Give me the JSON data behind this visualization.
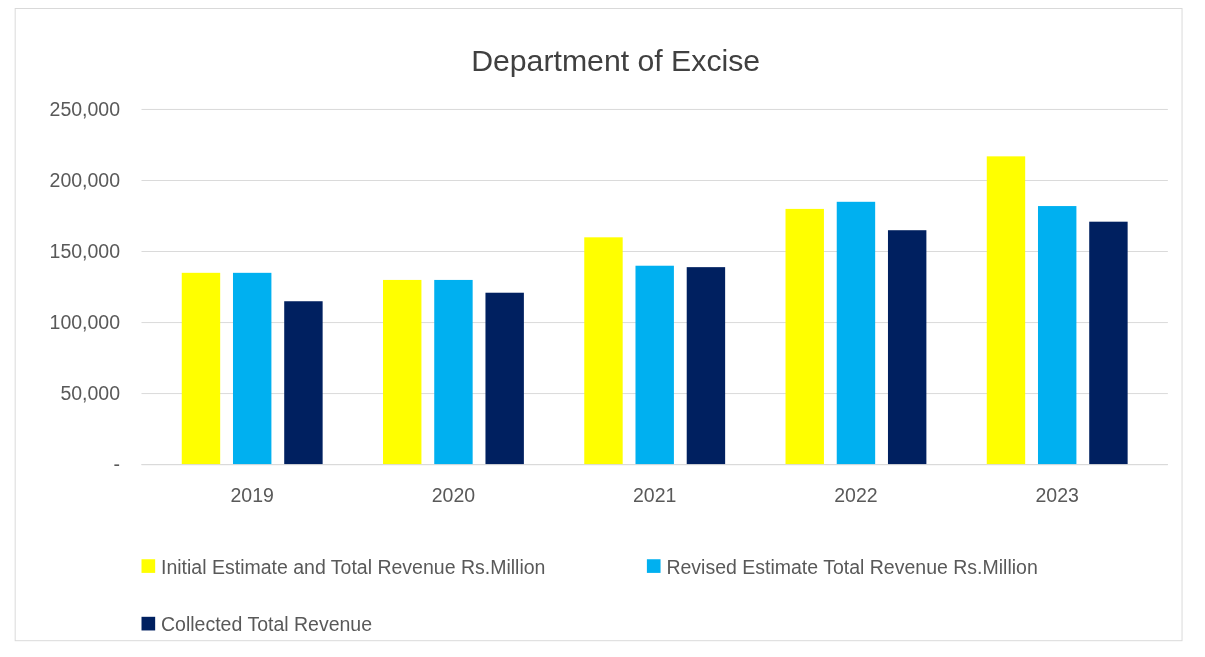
{
  "chart_data": {
    "type": "bar",
    "title": "Department of Excise",
    "categories": [
      "2019",
      "2020",
      "2021",
      "2022",
      "2023"
    ],
    "series": [
      {
        "name": "Initial Estimate and Total Revenue Rs.Million",
        "color": "#ffff00",
        "values": [
          135000,
          130000,
          160000,
          180000,
          217000
        ]
      },
      {
        "name": "Revised Estimate Total Revenue Rs.Million",
        "color": "#00b0f0",
        "values": [
          135000,
          130000,
          140000,
          185000,
          182000
        ]
      },
      {
        "name": "Collected Total Revenue",
        "color": "#002060",
        "values": [
          115000,
          121000,
          139000,
          165000,
          171000
        ]
      }
    ],
    "ylim": [
      0,
      250000
    ],
    "yticks": [
      {
        "value": 0,
        "label": "-"
      },
      {
        "value": 50000,
        "label": "50,000"
      },
      {
        "value": 100000,
        "label": "100,000"
      },
      {
        "value": 150000,
        "label": "150,000"
      },
      {
        "value": 200000,
        "label": "200,000"
      },
      {
        "value": 250000,
        "label": "250,000"
      }
    ],
    "grid": "y",
    "legend": "bottom"
  }
}
